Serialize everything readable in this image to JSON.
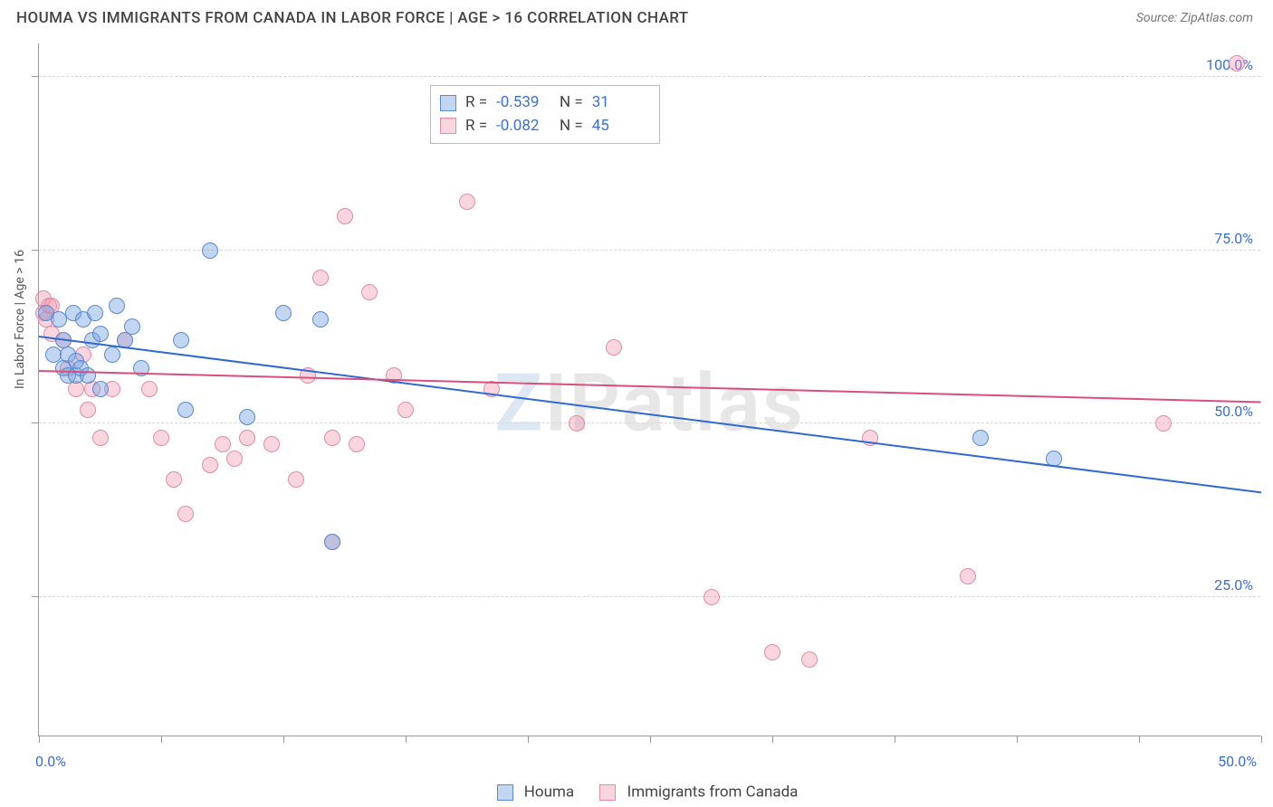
{
  "header": {
    "title": "HOUMA VS IMMIGRANTS FROM CANADA IN LABOR FORCE | AGE > 16 CORRELATION CHART",
    "source_prefix": "Source: ",
    "source_name": "ZipAtlas.com"
  },
  "watermark": {
    "z": "Z",
    "rest": "IPatlas"
  },
  "chart": {
    "type": "scatter",
    "ylabel": "In Labor Force | Age > 16",
    "background_color": "#ffffff",
    "grid_color": "#d8d8d8",
    "border_color": "#999999",
    "xlim": [
      0,
      50
    ],
    "ylim": [
      5,
      105
    ],
    "x_ticks": [
      0,
      5,
      10,
      15,
      20,
      25,
      30,
      35,
      40,
      45,
      50
    ],
    "x_tick_labels": {
      "0": "0.0%",
      "50": "50.0%"
    },
    "y_gridlines": [
      25,
      50,
      75,
      100
    ],
    "y_tick_labels": {
      "25": "25.0%",
      "50": "50.0%",
      "75": "75.0%",
      "100": "100.0%"
    },
    "marker_radius": 9,
    "marker_stroke_width": 1.5,
    "trend_line_width": 2,
    "tick_label_color": "#3b6fd8",
    "tick_label_fontsize": 16,
    "axis_label_color": "#555555",
    "axis_label_fontsize": 14,
    "series": [
      {
        "name": "Houma",
        "fill": "rgba(120,165,225,0.45)",
        "stroke": "#5a8bd0",
        "trend_color": "#2e6ad0",
        "R": "-0.539",
        "N": "31",
        "trend": {
          "x1": 0,
          "y1": 62.5,
          "x2": 50,
          "y2": 40
        },
        "points": [
          [
            0.3,
            66
          ],
          [
            0.6,
            60
          ],
          [
            0.8,
            65
          ],
          [
            1.0,
            58
          ],
          [
            1.0,
            62
          ],
          [
            1.2,
            57
          ],
          [
            1.2,
            60
          ],
          [
            1.4,
            66
          ],
          [
            1.5,
            59
          ],
          [
            1.5,
            57
          ],
          [
            1.7,
            58
          ],
          [
            1.8,
            65
          ],
          [
            2.0,
            57
          ],
          [
            2.2,
            62
          ],
          [
            2.3,
            66
          ],
          [
            2.5,
            55
          ],
          [
            2.5,
            63
          ],
          [
            3.0,
            60
          ],
          [
            3.2,
            67
          ],
          [
            3.5,
            62
          ],
          [
            3.8,
            64
          ],
          [
            4.2,
            58
          ],
          [
            5.8,
            62
          ],
          [
            6.0,
            52
          ],
          [
            7.0,
            75
          ],
          [
            8.5,
            51
          ],
          [
            10.0,
            66
          ],
          [
            11.5,
            65
          ],
          [
            12.0,
            33
          ],
          [
            38.5,
            48
          ],
          [
            41.5,
            45
          ]
        ]
      },
      {
        "name": "Immigrants from Canada",
        "fill": "rgba(240,150,175,0.40)",
        "stroke": "#e28ca5",
        "trend_color": "#d94f7a",
        "R": "-0.082",
        "N": "45",
        "trend": {
          "x1": 0,
          "y1": 57.5,
          "x2": 50,
          "y2": 53
        },
        "points": [
          [
            0.2,
            68
          ],
          [
            0.2,
            66
          ],
          [
            0.3,
            65
          ],
          [
            0.4,
            67
          ],
          [
            0.5,
            63
          ],
          [
            0.5,
            67
          ],
          [
            1.0,
            62
          ],
          [
            1.2,
            58
          ],
          [
            1.5,
            55
          ],
          [
            1.8,
            60
          ],
          [
            2.0,
            52
          ],
          [
            2.2,
            55
          ],
          [
            2.5,
            48
          ],
          [
            3.0,
            55
          ],
          [
            3.5,
            62
          ],
          [
            4.5,
            55
          ],
          [
            5.0,
            48
          ],
          [
            5.5,
            42
          ],
          [
            6.0,
            37
          ],
          [
            7.0,
            44
          ],
          [
            7.5,
            47
          ],
          [
            8.0,
            45
          ],
          [
            8.5,
            48
          ],
          [
            9.5,
            47
          ],
          [
            10.5,
            42
          ],
          [
            11.0,
            57
          ],
          [
            11.5,
            71
          ],
          [
            12.0,
            48
          ],
          [
            12.0,
            33
          ],
          [
            12.5,
            80
          ],
          [
            13.0,
            47
          ],
          [
            13.5,
            69
          ],
          [
            14.5,
            57
          ],
          [
            15.0,
            52
          ],
          [
            17.5,
            82
          ],
          [
            18.5,
            55
          ],
          [
            22.0,
            50
          ],
          [
            23.5,
            61
          ],
          [
            27.5,
            25
          ],
          [
            30.0,
            17
          ],
          [
            31.5,
            16
          ],
          [
            34.0,
            48
          ],
          [
            38.0,
            28
          ],
          [
            46.0,
            50
          ],
          [
            49.0,
            102
          ]
        ]
      }
    ],
    "legend_top": {
      "R_label": "R =",
      "N_label": "N ="
    },
    "legend_bottom": {
      "items": [
        "Houma",
        "Immigrants from Canada"
      ]
    }
  }
}
